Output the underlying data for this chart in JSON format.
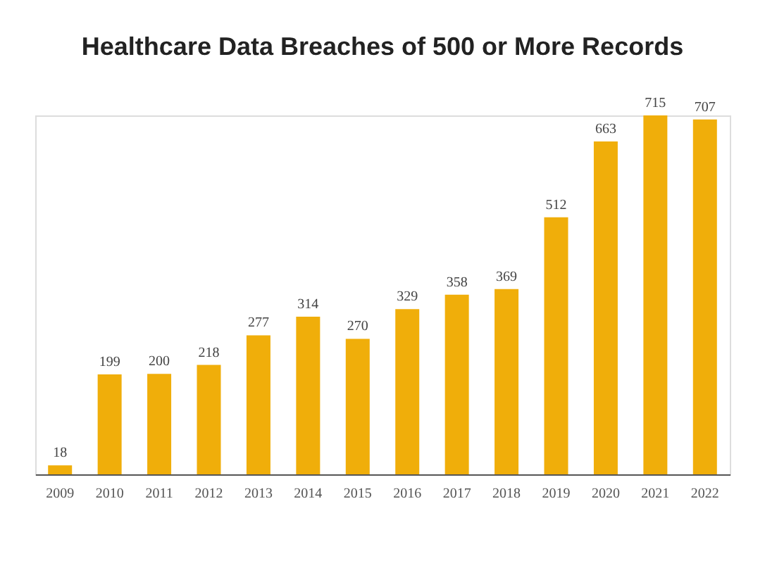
{
  "chart_data": {
    "type": "bar",
    "title": "Healthcare Data Breaches of 500 or More Records",
    "categories": [
      "2009",
      "2010",
      "2011",
      "2012",
      "2013",
      "2014",
      "2015",
      "2016",
      "2017",
      "2018",
      "2019",
      "2020",
      "2021",
      "2022"
    ],
    "values": [
      18,
      199,
      200,
      218,
      277,
      314,
      270,
      329,
      358,
      369,
      512,
      663,
      715,
      707
    ],
    "color": "#f0ae0a",
    "data_labels": true
  }
}
